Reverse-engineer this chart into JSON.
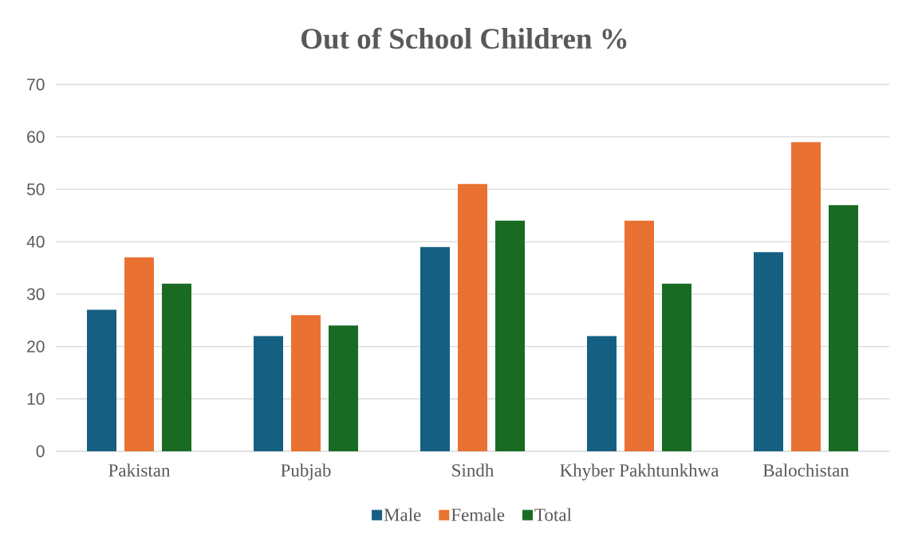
{
  "chart_data": {
    "type": "bar",
    "title": "Out of School Children %",
    "categories": [
      "Pakistan",
      "Pubjab",
      "Sindh",
      "Khyber Pakhtunkhwa",
      "Balochistan"
    ],
    "series": [
      {
        "name": "Male",
        "color": "#156082",
        "values": [
          27,
          22,
          39,
          22,
          38
        ]
      },
      {
        "name": "Female",
        "color": "#e97132",
        "values": [
          37,
          26,
          51,
          44,
          59
        ]
      },
      {
        "name": "Total",
        "color": "#196b24",
        "values": [
          32,
          24,
          44,
          32,
          47
        ]
      }
    ],
    "ylim": [
      0,
      70
    ],
    "yticks": [
      0,
      10,
      20,
      30,
      40,
      50,
      60,
      70
    ],
    "grid": "y",
    "legend": "bottom"
  }
}
